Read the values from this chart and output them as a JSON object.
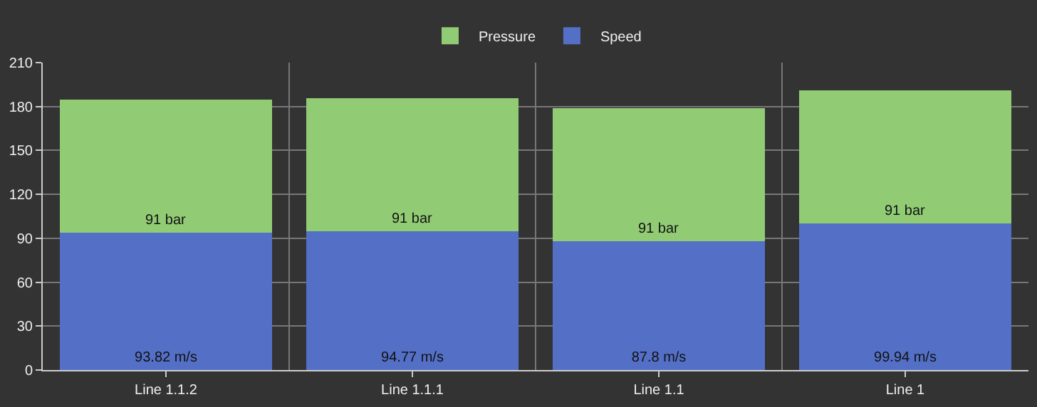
{
  "chart_data": {
    "type": "bar",
    "stacked": true,
    "categories": [
      "Line 1.1.2",
      "Line 1.1.1",
      "Line 1.1",
      "Line 1"
    ],
    "series": [
      {
        "name": "Speed",
        "color": "#5470c6",
        "values": [
          93.82,
          94.77,
          87.8,
          99.94
        ],
        "value_labels": [
          "93.82 m/s",
          "94.77 m/s",
          "87.8 m/s",
          "99.94 m/s"
        ]
      },
      {
        "name": "Pressure",
        "color": "#91cc75",
        "values": [
          91,
          91,
          91,
          91
        ],
        "value_labels": [
          "91 bar",
          "91 bar",
          "91 bar",
          "91 bar"
        ]
      }
    ],
    "ylim": [
      0,
      210
    ],
    "yticks": [
      0,
      30,
      60,
      90,
      120,
      150,
      180,
      210
    ],
    "grid": true,
    "legend": "top"
  }
}
